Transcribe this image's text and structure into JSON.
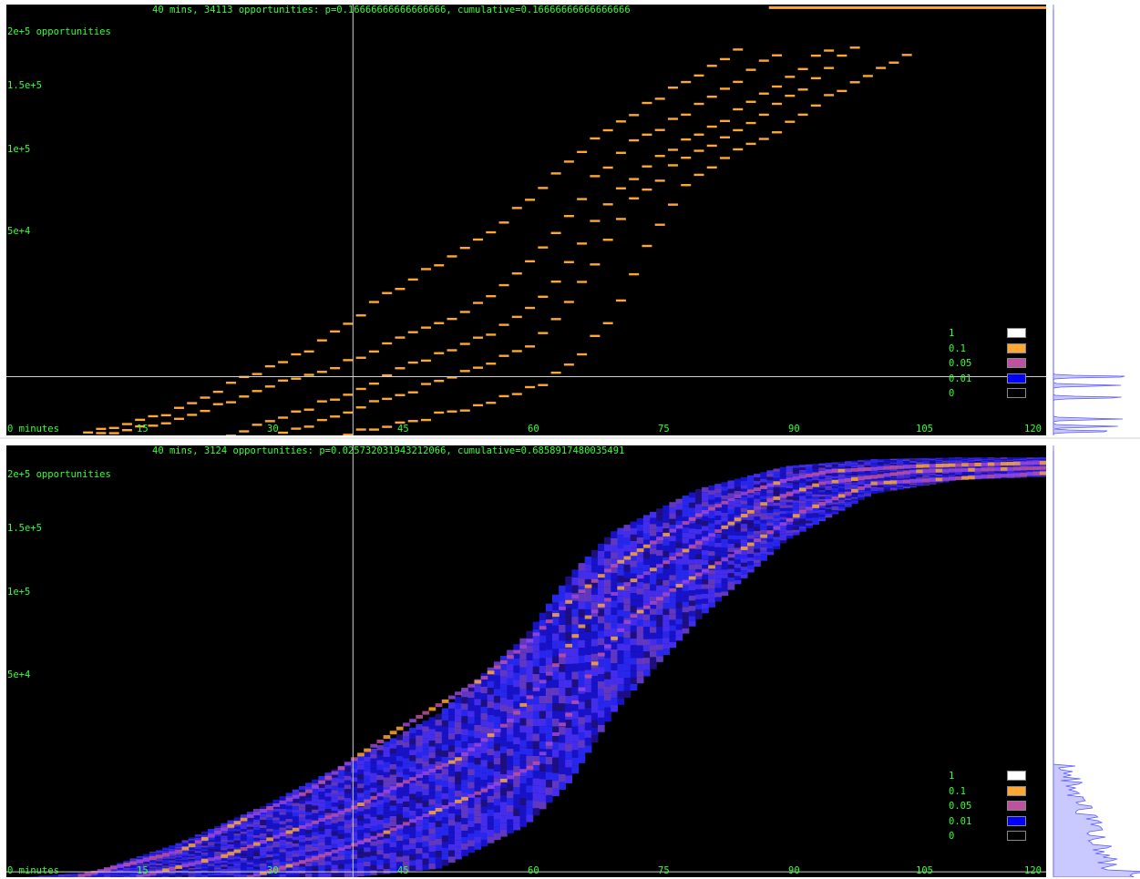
{
  "panels": [
    {
      "header": "40 mins, 34113 opportunities: p=0.16666666666666666, cumulative=0.16666666666666666",
      "y_labels": [
        "2e+5 opportunities",
        "1.5e+5",
        "1e+5",
        "5e+4"
      ],
      "x_labels": [
        "0 minutes",
        "15",
        "30",
        "45",
        "60",
        "75",
        "90",
        "105",
        "120"
      ],
      "legend": [
        {
          "label": "1",
          "color": "#ffffff"
        },
        {
          "label": "0.1",
          "color": "#ffa733"
        },
        {
          "label": "0.05",
          "color": "#c050a0"
        },
        {
          "label": "0.01",
          "color": "#0000ff"
        },
        {
          "label": "0",
          "color": "#000000"
        }
      ]
    },
    {
      "header": "40 mins, 3124 opportunities: p=0.025732031943212066, cumulative=0.6858917480035491",
      "y_labels": [
        "2e+5 opportunities",
        "1.5e+5",
        "1e+5",
        "5e+4"
      ],
      "x_labels": [
        "0 minutes",
        "15",
        "30",
        "45",
        "60",
        "75",
        "90",
        "105",
        "120"
      ],
      "legend": [
        {
          "label": "1",
          "color": "#ffffff"
        },
        {
          "label": "0.1",
          "color": "#ffa733"
        },
        {
          "label": "0.05",
          "color": "#c050a0"
        },
        {
          "label": "0.01",
          "color": "#0000ff"
        },
        {
          "label": "0",
          "color": "#000000"
        }
      ]
    }
  ],
  "chart_data": [
    {
      "type": "heatmap",
      "xlim": [
        0,
        120
      ],
      "ylim": [
        0,
        250000
      ],
      "cursor": {
        "x": 40,
        "y": 34113
      },
      "mode": "discrete",
      "color_scale": [
        0,
        0.01,
        0.05,
        0.1,
        1
      ],
      "curves": [
        {
          "x": [
            8,
            20,
            28,
            35,
            40,
            45,
            50,
            55,
            60,
            65,
            70,
            75,
            80,
            85
          ],
          "y": [
            0,
            15000,
            35000,
            50000,
            68000,
            85000,
            100000,
            115000,
            135000,
            160000,
            180000,
            195000,
            210000,
            225000
          ]
        },
        {
          "x": [
            10,
            22,
            30,
            38,
            45,
            52,
            58,
            64,
            68,
            72,
            78,
            84,
            90
          ],
          "y": [
            0,
            12000,
            28000,
            40000,
            55000,
            68000,
            90000,
            120000,
            150000,
            170000,
            185000,
            205000,
            225000
          ]
        },
        {
          "x": [
            25,
            32,
            38,
            44,
            50,
            56,
            62,
            66,
            70,
            76,
            82,
            88,
            95
          ],
          "y": [
            0,
            10000,
            22000,
            35000,
            48000,
            60000,
            80000,
            110000,
            140000,
            165000,
            180000,
            200000,
            225000
          ]
        },
        {
          "x": [
            30,
            36,
            42,
            48,
            54,
            60,
            64,
            68,
            72,
            78,
            84,
            90,
            98
          ],
          "y": [
            0,
            8000,
            18000,
            28000,
            38000,
            50000,
            70000,
            100000,
            135000,
            160000,
            175000,
            195000,
            225000
          ]
        },
        {
          "x": [
            38,
            44,
            50,
            56,
            62,
            66,
            70,
            74,
            78,
            84,
            90,
            96,
            105
          ],
          "y": [
            0,
            6000,
            12000,
            20000,
            30000,
            45000,
            70000,
            110000,
            145000,
            165000,
            180000,
            200000,
            225000
          ]
        }
      ],
      "side_peaks": [
        {
          "y": 34113,
          "w": 90
        },
        {
          "y": 29000,
          "w": 75
        },
        {
          "y": 22000,
          "w": 82
        },
        {
          "y": 9500,
          "w": 76
        },
        {
          "y": 5200,
          "w": 72
        },
        {
          "y": 2400,
          "w": 68
        }
      ]
    },
    {
      "type": "heatmap",
      "xlim": [
        0,
        120
      ],
      "ylim": [
        0,
        250000
      ],
      "cursor": {
        "x": 40,
        "y": 3124
      },
      "mode": "density",
      "color_scale": [
        0,
        0.01,
        0.05,
        0.1,
        1
      ],
      "curves": [
        {
          "x": [
            8,
            20,
            28,
            35,
            40,
            45,
            50,
            55,
            60,
            65,
            70,
            75,
            80,
            85,
            90,
            95,
            105,
            120
          ],
          "y": [
            0,
            15000,
            35000,
            50000,
            68000,
            85000,
            100000,
            115000,
            135000,
            160000,
            180000,
            195000,
            210000,
            222000,
            230000,
            235000,
            238000,
            240000
          ]
        },
        {
          "x": [
            15,
            25,
            32,
            40,
            46,
            52,
            58,
            63,
            67,
            71,
            76,
            82,
            88,
            94,
            105,
            120
          ],
          "y": [
            0,
            12000,
            25000,
            40000,
            55000,
            68000,
            90000,
            120000,
            150000,
            168000,
            182000,
            200000,
            218000,
            228000,
            235000,
            237000
          ]
        },
        {
          "x": [
            28,
            35,
            42,
            48,
            55,
            61,
            65,
            68,
            72,
            78,
            85,
            92,
            100,
            120
          ],
          "y": [
            0,
            10000,
            22000,
            35000,
            50000,
            65000,
            95000,
            125000,
            150000,
            170000,
            190000,
            212000,
            228000,
            234000
          ]
        }
      ],
      "density_band": {
        "x": [
          2,
          10,
          20,
          30,
          40,
          50,
          60,
          65,
          70,
          80,
          90,
          100,
          110,
          120
        ],
        "lower": [
          0,
          0,
          0,
          0,
          0,
          5000,
          30000,
          55000,
          95000,
          150000,
          195000,
          222000,
          230000,
          232000
        ],
        "upper": [
          0,
          3000,
          20000,
          42000,
          68000,
          95000,
          140000,
          175000,
          200000,
          225000,
          238000,
          242000,
          243000,
          243000
        ]
      }
    }
  ]
}
